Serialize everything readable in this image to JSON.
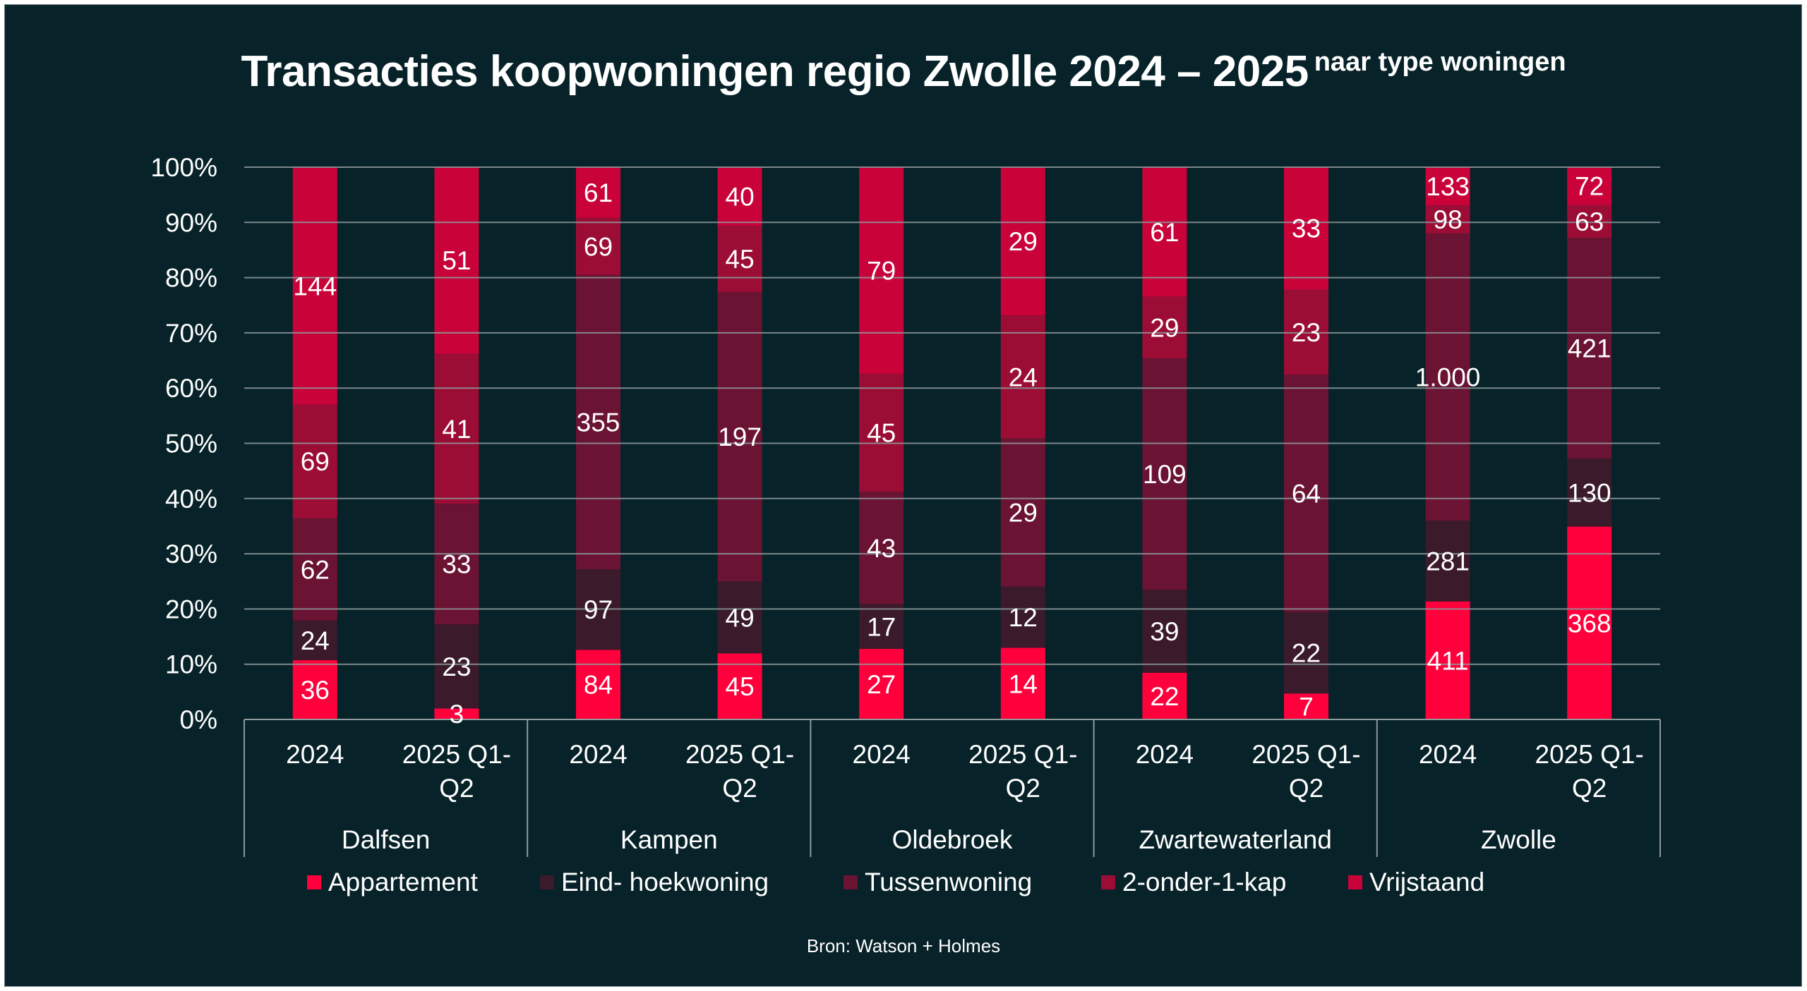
{
  "title": {
    "main": "Transacties koopwoningen regio Zwolle 2024 – 2025",
    "sub": "naar type woningen"
  },
  "source": "Bron: Watson + Holmes",
  "colors": {
    "background": "#072228",
    "gridline": "#8e9a9c",
    "text": "#ffffff"
  },
  "chart_data": {
    "type": "bar",
    "stacked": true,
    "normalized": "percent",
    "title": "Transacties koopwoningen regio Zwolle 2024 – 2025 naar type woningen",
    "xlabel": "",
    "ylabel": "",
    "ylim": [
      0,
      100
    ],
    "yticks": [
      "0%",
      "10%",
      "20%",
      "30%",
      "40%",
      "50%",
      "60%",
      "70%",
      "80%",
      "90%",
      "100%"
    ],
    "grid": true,
    "legend_position": "bottom",
    "groups": [
      {
        "name": "Dalfsen",
        "periods": [
          "2024",
          "2025 Q1-Q2"
        ]
      },
      {
        "name": "Kampen",
        "periods": [
          "2024",
          "2025 Q1-Q2"
        ]
      },
      {
        "name": "Oldebroek",
        "periods": [
          "2024",
          "2025 Q1-Q2"
        ]
      },
      {
        "name": "Zwartewaterland",
        "periods": [
          "2024",
          "2025 Q1-Q2"
        ]
      },
      {
        "name": "Zwolle",
        "periods": [
          "2024",
          "2025 Q1-Q2"
        ]
      }
    ],
    "period_labels": [
      {
        "line1": "2024",
        "line2": ""
      },
      {
        "line1": "2025 Q1-",
        "line2": "Q2"
      }
    ],
    "series": [
      {
        "name": "Appartement",
        "color": "#ff003c",
        "values": [
          36,
          3,
          84,
          45,
          27,
          14,
          22,
          7,
          411,
          368
        ],
        "labels": [
          "36",
          "3",
          "84",
          "45",
          "27",
          "14",
          "22",
          "7",
          "411",
          "368"
        ]
      },
      {
        "name": "Eind- hoekwoning",
        "color": "#3a1a2b",
        "values": [
          24,
          23,
          97,
          49,
          17,
          12,
          39,
          22,
          281,
          130
        ],
        "labels": [
          "24",
          "23",
          "97",
          "49",
          "17",
          "12",
          "39",
          "22",
          "281",
          "130"
        ]
      },
      {
        "name": "Tussenwoning",
        "color": "#6a1332",
        "values": [
          62,
          33,
          355,
          197,
          43,
          29,
          109,
          64,
          1000,
          421
        ],
        "labels": [
          "62",
          "33",
          "355",
          "197",
          "43",
          "29",
          "109",
          "64",
          "1.000",
          "421"
        ]
      },
      {
        "name": "2-onder-1-kap",
        "color": "#9c0d36",
        "values": [
          69,
          41,
          69,
          45,
          45,
          24,
          29,
          23,
          98,
          63
        ],
        "labels": [
          "69",
          "41",
          "69",
          "45",
          "45",
          "24",
          "29",
          "23",
          "98",
          "63"
        ]
      },
      {
        "name": "Vrijstaand",
        "color": "#c9033a",
        "values": [
          144,
          51,
          61,
          40,
          79,
          29,
          61,
          33,
          133,
          72
        ],
        "labels": [
          "144",
          "51",
          "61",
          "40",
          "79",
          "29",
          "61",
          "33",
          "133",
          "72"
        ]
      }
    ]
  }
}
